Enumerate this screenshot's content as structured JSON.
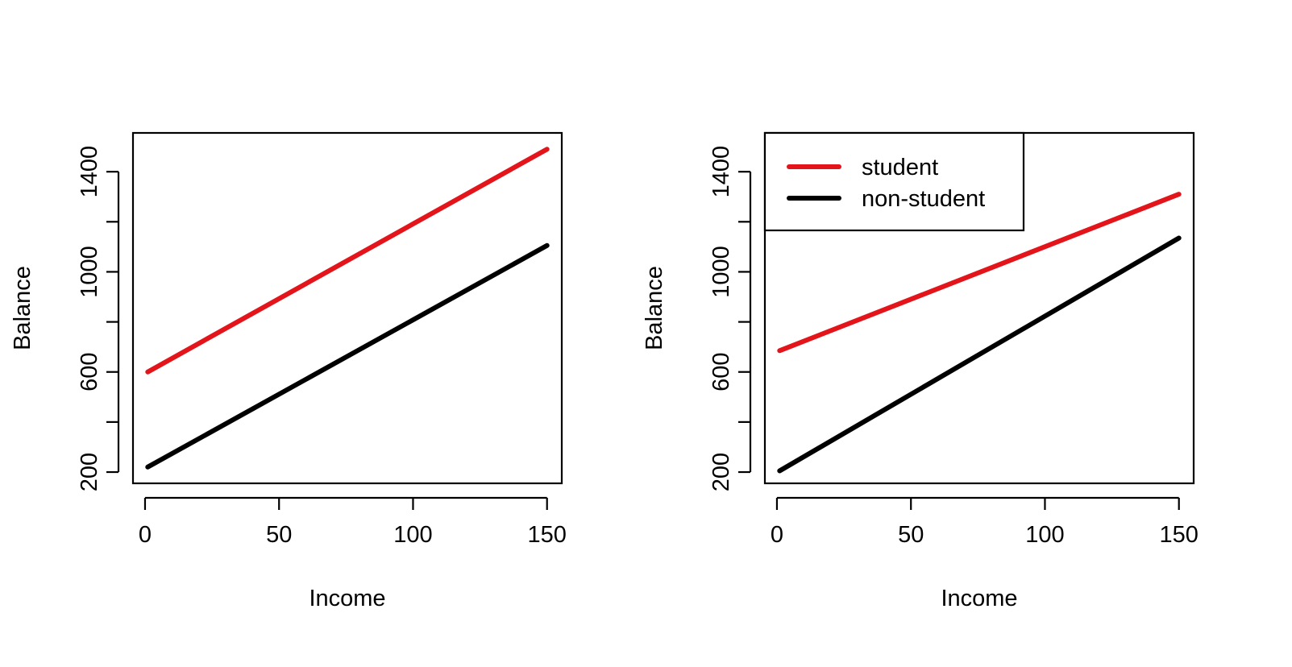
{
  "colors": {
    "red": "#e3151b",
    "black": "#000000",
    "background": "#ffffff"
  },
  "chart_data": [
    {
      "type": "line",
      "title": "",
      "xlabel": "Income",
      "ylabel": "Balance",
      "xlim": [
        -4.5,
        155.5
      ],
      "ylim": [
        155,
        1555
      ],
      "xticks": [
        0,
        50,
        100,
        150
      ],
      "xtick_labels": [
        "0",
        "50",
        "100",
        "150"
      ],
      "yticks": [
        200,
        400,
        600,
        800,
        1000,
        1200,
        1400
      ],
      "ytick_labels": [
        "200",
        "",
        "600",
        "",
        "1000",
        "",
        "1400"
      ],
      "legend": null,
      "series": [
        {
          "color": "#e3151b",
          "x": [
            1,
            150
          ],
          "y": [
            600,
            1490
          ]
        },
        {
          "color": "#000000",
          "x": [
            1,
            150
          ],
          "y": [
            220,
            1105
          ]
        }
      ]
    },
    {
      "type": "line",
      "title": "",
      "xlabel": "Income",
      "ylabel": "Balance",
      "xlim": [
        -4.5,
        155.5
      ],
      "ylim": [
        155,
        1555
      ],
      "xticks": [
        0,
        50,
        100,
        150
      ],
      "xtick_labels": [
        "0",
        "50",
        "100",
        "150"
      ],
      "yticks": [
        200,
        400,
        600,
        800,
        1000,
        1200,
        1400
      ],
      "ytick_labels": [
        "200",
        "",
        "600",
        "",
        "1000",
        "",
        "1400"
      ],
      "legend": "top-left",
      "series": [
        {
          "name": "student",
          "color": "#e3151b",
          "x": [
            1,
            150
          ],
          "y": [
            685,
            1310
          ]
        },
        {
          "name": "non-student",
          "color": "#000000",
          "x": [
            1,
            150
          ],
          "y": [
            205,
            1135
          ]
        }
      ]
    }
  ]
}
